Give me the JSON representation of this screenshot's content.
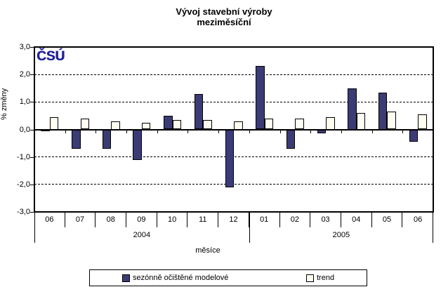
{
  "logo": {
    "text": "ČSÚ",
    "color": "#21219b"
  },
  "chart_data": {
    "type": "bar",
    "title": "Vývoj stavební výroby",
    "subtitle": "meziměsíční",
    "ylabel": "% změny",
    "xlabel": "měsíce",
    "ylim": [
      -3.0,
      3.0
    ],
    "ytick_values": [
      3,
      2,
      1,
      0,
      -1,
      -2,
      -3
    ],
    "ytick_labels": [
      "3,0",
      "2,0",
      "1,0",
      "0,0",
      "-1,0",
      "-2,0",
      "-3,0"
    ],
    "gridlines": [
      2,
      1,
      -1,
      -2
    ],
    "grid_on": true,
    "categories": [
      "06",
      "07",
      "08",
      "09",
      "10",
      "11",
      "12",
      "01",
      "02",
      "03",
      "04",
      "05",
      "06"
    ],
    "year_groups": [
      {
        "label": "2004",
        "span": 7
      },
      {
        "label": "2005",
        "span": 6
      }
    ],
    "series": [
      {
        "name": "sezónně očištěné modelové",
        "color": "#3b3b76",
        "values": [
          -0.05,
          -0.7,
          -0.7,
          -1.1,
          0.5,
          1.3,
          -2.1,
          2.3,
          -0.7,
          -0.15,
          1.5,
          1.35,
          -0.45
        ]
      },
      {
        "name": "trend",
        "color": "#fffdf0",
        "values": [
          0.45,
          0.4,
          0.3,
          0.25,
          0.35,
          0.35,
          0.3,
          0.4,
          0.4,
          0.45,
          0.6,
          0.65,
          0.55
        ]
      }
    ],
    "legend_position": "bottom"
  }
}
